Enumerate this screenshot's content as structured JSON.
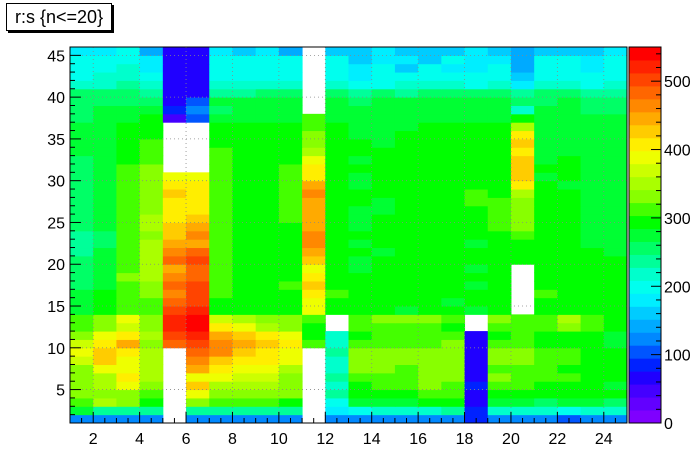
{
  "chart_data": {
    "type": "heatmap",
    "title": "r:s {n<=20}",
    "xlabel": "",
    "ylabel": "",
    "x_range": [
      1,
      25
    ],
    "y_range": [
      1,
      46
    ],
    "x_bin_width": 1,
    "y_bin_width": 1,
    "x_ticks": [
      "2",
      "4",
      "6",
      "8",
      "10",
      "12",
      "14",
      "16",
      "18",
      "20",
      "22",
      "24"
    ],
    "y_ticks": [
      "5",
      "10",
      "15",
      "20",
      "25",
      "30",
      "35",
      "40",
      "45"
    ],
    "z_range": [
      0,
      550
    ],
    "z_ticks": [
      "0",
      "100",
      "200",
      "300",
      "400",
      "500"
    ],
    "grid": true,
    "colorbar": "right",
    "palette": [
      "#7f00ff",
      "#6200ff",
      "#4400ff",
      "#2000ff",
      "#0022ff",
      "#0055ff",
      "#0088ff",
      "#00aaff",
      "#00ccff",
      "#00eeff",
      "#00ffee",
      "#00ffcc",
      "#00ff99",
      "#00ff66",
      "#00ff33",
      "#00ff00",
      "#44ff00",
      "#88ff00",
      "#aaff00",
      "#ccff00",
      "#eeff00",
      "#ffee00",
      "#ffcc00",
      "#ffaa00",
      "#ff8800",
      "#ff6600",
      "#ff4400",
      "#ff2200",
      "#ff0000"
    ],
    "z_rows_from_y1": [
      [
        130,
        130,
        120,
        130,
        null,
        130,
        130,
        130,
        130,
        130,
        null,
        120,
        120,
        130,
        130,
        130,
        130,
        80,
        130,
        130,
        130,
        100,
        120,
        130
      ],
      [
        280,
        240,
        230,
        240,
        null,
        230,
        230,
        240,
        240,
        230,
        null,
        180,
        200,
        210,
        220,
        220,
        230,
        90,
        220,
        210,
        220,
        200,
        220,
        210
      ],
      [
        320,
        360,
        330,
        300,
        null,
        340,
        320,
        310,
        320,
        300,
        null,
        200,
        280,
        280,
        280,
        290,
        300,
        70,
        270,
        280,
        260,
        270,
        280,
        260
      ],
      [
        330,
        340,
        330,
        310,
        null,
        380,
        340,
        330,
        340,
        330,
        null,
        230,
        300,
        300,
        300,
        320,
        320,
        70,
        300,
        300,
        290,
        290,
        300,
        290
      ],
      [
        340,
        360,
        380,
        330,
        null,
        420,
        360,
        350,
        360,
        340,
        null,
        220,
        300,
        310,
        320,
        330,
        320,
        80,
        310,
        310,
        300,
        300,
        290,
        280
      ],
      [
        330,
        350,
        400,
        350,
        null,
        390,
        380,
        370,
        370,
        340,
        null,
        230,
        320,
        320,
        320,
        330,
        340,
        70,
        330,
        310,
        310,
        310,
        300,
        290
      ],
      [
        340,
        380,
        380,
        350,
        null,
        440,
        400,
        380,
        380,
        360,
        null,
        220,
        330,
        330,
        320,
        330,
        330,
        70,
        320,
        320,
        310,
        300,
        300,
        290
      ],
      [
        370,
        420,
        390,
        350,
        null,
        460,
        420,
        410,
        400,
        380,
        null,
        220,
        340,
        330,
        330,
        330,
        340,
        70,
        340,
        330,
        310,
        310,
        300,
        300
      ],
      [
        380,
        430,
        400,
        360,
        null,
        490,
        460,
        420,
        410,
        390,
        null,
        230,
        340,
        330,
        340,
        340,
        340,
        70,
        340,
        330,
        310,
        310,
        300,
        300
      ],
      [
        370,
        410,
        440,
        330,
        480,
        510,
        470,
        440,
        420,
        400,
        310,
        220,
        310,
        320,
        310,
        320,
        330,
        70,
        320,
        310,
        300,
        300,
        300,
        280
      ],
      [
        340,
        380,
        410,
        350,
        500,
        530,
        450,
        430,
        410,
        380,
        300,
        220,
        300,
        310,
        310,
        310,
        320,
        70,
        300,
        310,
        300,
        300,
        300,
        280
      ],
      [
        320,
        340,
        370,
        330,
        520,
        540,
        400,
        380,
        360,
        340,
        290,
        null,
        310,
        320,
        320,
        310,
        300,
        null,
        310,
        320,
        310,
        340,
        310,
        300
      ],
      [
        320,
        340,
        380,
        330,
        520,
        540,
        370,
        350,
        340,
        330,
        310,
        null,
        320,
        330,
        340,
        330,
        310,
        null,
        330,
        320,
        310,
        360,
        320,
        300
      ],
      [
        280,
        300,
        320,
        320,
        500,
        520,
        300,
        290,
        290,
        290,
        390,
        300,
        290,
        300,
        280,
        290,
        290,
        280,
        300,
        null,
        300,
        300,
        290,
        290
      ],
      [
        270,
        290,
        310,
        310,
        480,
        510,
        300,
        290,
        290,
        300,
        390,
        300,
        290,
        290,
        290,
        290,
        280,
        290,
        290,
        null,
        300,
        300,
        290,
        290
      ],
      [
        280,
        300,
        320,
        330,
        460,
        500,
        310,
        300,
        300,
        300,
        400,
        310,
        300,
        300,
        300,
        290,
        290,
        290,
        290,
        null,
        310,
        300,
        300,
        300
      ],
      [
        260,
        280,
        320,
        340,
        480,
        510,
        320,
        300,
        300,
        310,
        420,
        300,
        290,
        290,
        290,
        300,
        290,
        280,
        290,
        null,
        300,
        300,
        290,
        290
      ],
      [
        260,
        280,
        330,
        350,
        460,
        490,
        320,
        300,
        300,
        300,
        400,
        290,
        290,
        290,
        290,
        300,
        300,
        290,
        290,
        null,
        300,
        290,
        290,
        290
      ],
      [
        250,
        270,
        320,
        360,
        450,
        480,
        320,
        300,
        300,
        300,
        390,
        290,
        280,
        290,
        290,
        290,
        290,
        280,
        290,
        null,
        290,
        300,
        290,
        290
      ],
      [
        250,
        280,
        320,
        360,
        480,
        500,
        320,
        300,
        300,
        300,
        420,
        290,
        280,
        290,
        290,
        290,
        300,
        290,
        290,
        290,
        290,
        300,
        290,
        290
      ],
      [
        240,
        270,
        320,
        360,
        470,
        480,
        320,
        300,
        300,
        300,
        440,
        290,
        290,
        280,
        290,
        290,
        290,
        290,
        290,
        290,
        290,
        290,
        290,
        280
      ],
      [
        240,
        260,
        310,
        350,
        440,
        450,
        310,
        300,
        300,
        300,
        460,
        290,
        280,
        290,
        290,
        290,
        290,
        280,
        300,
        290,
        290,
        290,
        280,
        280
      ],
      [
        240,
        260,
        310,
        340,
        430,
        460,
        310,
        300,
        300,
        300,
        470,
        290,
        290,
        290,
        290,
        300,
        290,
        290,
        300,
        310,
        290,
        290,
        280,
        280
      ],
      [
        250,
        270,
        310,
        350,
        430,
        440,
        310,
        290,
        300,
        300,
        450,
        290,
        280,
        290,
        290,
        290,
        290,
        300,
        310,
        340,
        290,
        290,
        280,
        280
      ],
      [
        250,
        270,
        310,
        350,
        410,
        430,
        310,
        290,
        300,
        310,
        440,
        290,
        280,
        290,
        290,
        290,
        290,
        300,
        320,
        340,
        290,
        290,
        280,
        280
      ],
      [
        260,
        270,
        310,
        340,
        400,
        410,
        310,
        290,
        290,
        310,
        450,
        290,
        280,
        280,
        290,
        290,
        290,
        300,
        320,
        330,
        290,
        290,
        280,
        280
      ],
      [
        260,
        270,
        310,
        340,
        400,
        400,
        320,
        290,
        300,
        310,
        450,
        290,
        290,
        280,
        290,
        290,
        290,
        310,
        320,
        330,
        290,
        290,
        280,
        280
      ],
      [
        260,
        280,
        320,
        340,
        420,
        400,
        320,
        300,
        300,
        310,
        460,
        290,
        290,
        290,
        290,
        300,
        290,
        310,
        300,
        360,
        290,
        290,
        280,
        280
      ],
      [
        260,
        280,
        320,
        340,
        410,
        400,
        320,
        300,
        300,
        320,
        440,
        290,
        280,
        290,
        290,
        290,
        290,
        300,
        300,
        400,
        290,
        280,
        280,
        270
      ],
      [
        250,
        270,
        310,
        330,
        380,
        380,
        310,
        300,
        300,
        310,
        410,
        290,
        280,
        290,
        290,
        290,
        290,
        300,
        300,
        420,
        280,
        290,
        270,
        270
      ],
      [
        260,
        280,
        310,
        330,
        null,
        null,
        320,
        300,
        300,
        310,
        400,
        300,
        290,
        290,
        290,
        300,
        290,
        300,
        300,
        430,
        290,
        290,
        280,
        280
      ],
      [
        260,
        280,
        300,
        320,
        null,
        null,
        310,
        300,
        300,
        300,
        380,
        300,
        280,
        290,
        290,
        290,
        290,
        300,
        290,
        420,
        280,
        290,
        280,
        270
      ],
      [
        270,
        280,
        300,
        320,
        null,
        null,
        310,
        300,
        300,
        300,
        360,
        300,
        290,
        290,
        290,
        290,
        290,
        300,
        290,
        410,
        280,
        280,
        280,
        280
      ],
      [
        270,
        280,
        290,
        310,
        null,
        null,
        300,
        290,
        290,
        300,
        340,
        300,
        290,
        280,
        290,
        290,
        290,
        300,
        290,
        420,
        280,
        280,
        280,
        270
      ],
      [
        270,
        280,
        290,
        300,
        null,
        null,
        290,
        290,
        290,
        300,
        330,
        290,
        280,
        280,
        290,
        290,
        290,
        290,
        290,
        400,
        280,
        280,
        270,
        270
      ],
      [
        270,
        280,
        290,
        300,
        null,
        null,
        290,
        290,
        290,
        290,
        320,
        290,
        280,
        280,
        280,
        290,
        290,
        290,
        290,
        360,
        280,
        280,
        280,
        270
      ],
      [
        260,
        270,
        280,
        290,
        40,
        100,
        280,
        280,
        280,
        280,
        310,
        280,
        280,
        280,
        280,
        280,
        280,
        280,
        280,
        300,
        270,
        280,
        270,
        270
      ],
      [
        250,
        270,
        270,
        270,
        80,
        120,
        260,
        270,
        270,
        280,
        null,
        280,
        270,
        280,
        280,
        270,
        270,
        270,
        270,
        220,
        270,
        270,
        260,
        260
      ],
      [
        260,
        260,
        260,
        260,
        60,
        110,
        270,
        270,
        270,
        270,
        null,
        270,
        260,
        270,
        270,
        270,
        270,
        270,
        270,
        250,
        260,
        270,
        260,
        260
      ],
      [
        250,
        250,
        250,
        240,
        60,
        60,
        240,
        240,
        250,
        250,
        null,
        250,
        240,
        250,
        240,
        250,
        250,
        250,
        250,
        230,
        250,
        250,
        240,
        240
      ],
      [
        210,
        220,
        230,
        210,
        60,
        60,
        210,
        210,
        210,
        210,
        null,
        210,
        200,
        200,
        210,
        210,
        210,
        200,
        210,
        180,
        210,
        210,
        200,
        210
      ],
      [
        200,
        210,
        210,
        190,
        60,
        60,
        200,
        200,
        200,
        200,
        null,
        200,
        180,
        190,
        200,
        200,
        200,
        190,
        200,
        170,
        200,
        200,
        190,
        200
      ],
      [
        200,
        200,
        210,
        180,
        60,
        60,
        200,
        200,
        190,
        200,
        null,
        200,
        180,
        190,
        170,
        190,
        180,
        180,
        200,
        150,
        190,
        190,
        180,
        190
      ],
      [
        190,
        190,
        200,
        180,
        60,
        60,
        190,
        190,
        190,
        190,
        null,
        190,
        170,
        180,
        180,
        170,
        190,
        180,
        180,
        150,
        190,
        190,
        180,
        190
      ],
      [
        180,
        180,
        190,
        150,
        60,
        60,
        180,
        170,
        180,
        150,
        null,
        160,
        170,
        180,
        160,
        170,
        170,
        180,
        170,
        140,
        170,
        170,
        160,
        180
      ]
    ]
  }
}
